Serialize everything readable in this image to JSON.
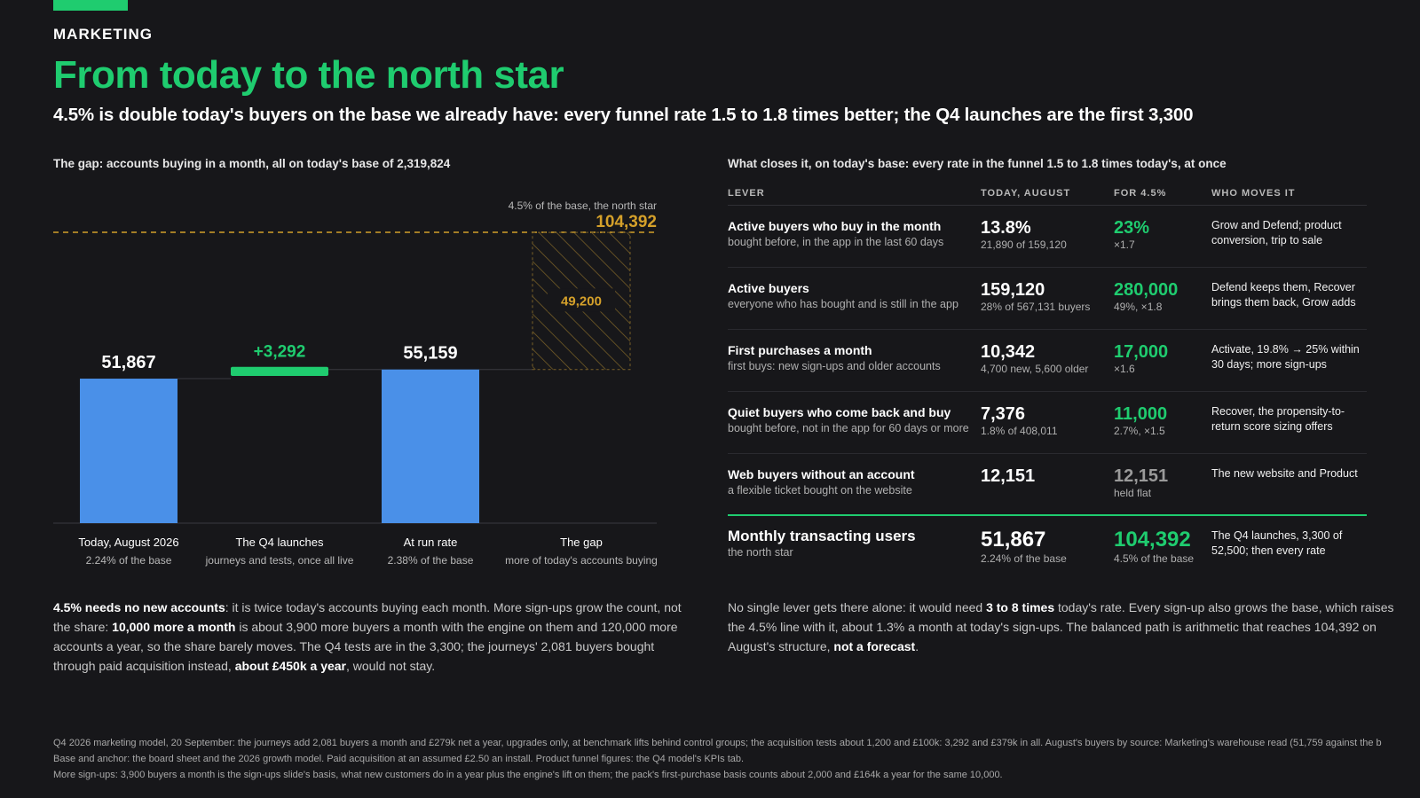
{
  "header": {
    "kicker": "MARKETING",
    "title": "From today to the north star",
    "subtitle": "4.5% is double today's buyers on the base we already have: every funnel rate 1.5 to 1.8 times better; the Q4 launches are the first 3,300"
  },
  "left": {
    "heading": "The gap: accounts buying in a month, all on today's base of 2,319,824",
    "para": {
      "b1": "4.5% needs no new accounts",
      "t1": ": it is twice today's accounts buying each month. More sign-ups grow the count, not the share: ",
      "b2": "10,000 more a month",
      "t2": " is about 3,900 more buyers a month with the engine on them and 120,000 more accounts a year, so the share barely moves. The Q4 tests are in the 3,300; the journeys' 2,081 buyers bought through paid acquisition instead, ",
      "b3": "about £450k a year",
      "t3": ", would not stay."
    }
  },
  "chart_data": {
    "type": "bar",
    "subtype": "waterfall",
    "title": "The gap: accounts buying in a month, all on today's base of 2,319,824",
    "target": {
      "label": "4.5% of the base, the north star",
      "value": 104392,
      "value_label": "104,392"
    },
    "categories": [
      "Today, August 2026",
      "The Q4 launches",
      "At run rate",
      "The gap"
    ],
    "sublabels": [
      "2.24% of the base",
      "journeys and tests, once all live",
      "2.38% of the base",
      "more of today's accounts buying"
    ],
    "values": [
      51867,
      3292,
      55159,
      49200
    ],
    "value_labels": [
      "51,867",
      "+3,292",
      "55,159",
      "49,200"
    ],
    "kinds": [
      "total",
      "increment",
      "total",
      "gap"
    ],
    "ylim": [
      0,
      104392
    ],
    "colors": {
      "total": "#4a90e8",
      "increment": "#1fcc6f",
      "gap": "#d4a02a"
    }
  },
  "right": {
    "heading": "What closes it, on today's base: every rate in the funnel 1.5 to 1.8 times today's, at once",
    "columns": [
      "LEVER",
      "TODAY, AUGUST",
      "FOR 4.5%",
      "WHO MOVES IT"
    ],
    "rows": [
      {
        "name": "Active buyers who buy in the month",
        "desc": "bought before, in the app in the last 60 days",
        "today": "13.8%",
        "today_sub": "21,890 of 159,120",
        "target": "23%",
        "target_sub": "×1.7",
        "who": "Grow and Defend; product conversion, trip to sale"
      },
      {
        "name": "Active buyers",
        "desc": "everyone who has bought and is still in the app",
        "today": "159,120",
        "today_sub": "28% of 567,131 buyers",
        "target": "280,000",
        "target_sub": "49%, ×1.8",
        "who": "Defend keeps them, Recover brings them back, Grow adds"
      },
      {
        "name": "First purchases a month",
        "desc": "first buys: new sign-ups and older accounts",
        "today": "10,342",
        "today_sub": "4,700 new, 5,600 older",
        "target": "17,000",
        "target_sub": "×1.6",
        "who": "Activate, 19.8% → 25% within 30 days; more sign-ups"
      },
      {
        "name": "Quiet buyers who come back and buy",
        "desc": "bought before, not in the app for 60 days or more",
        "today": "7,376",
        "today_sub": "1.8% of 408,011",
        "target": "11,000",
        "target_sub": "2.7%, ×1.5",
        "who": "Recover, the propensity-to-return score sizing offers"
      },
      {
        "name": "Web buyers without an account",
        "desc": "a flexible ticket bought on the website",
        "today": "12,151",
        "today_sub": "",
        "target": "12,151",
        "target_sub": "held flat",
        "who": "The new website and Product"
      }
    ],
    "total": {
      "name": "Monthly transacting users",
      "desc": "the north star",
      "today": "51,867",
      "today_sub": "2.24% of the base",
      "target": "104,392",
      "target_sub": "4.5% of the base",
      "who": "The Q4 launches, 3,300 of 52,500; then every rate"
    },
    "para": {
      "t1": "No single lever gets there alone: it would need ",
      "b1": "3 to 8 times",
      "t2": " today's rate. Every sign-up also grows the base, which raises the 4.5% line with it, about 1.3% a month at today's sign-ups. The balanced path is arithmetic that reaches 104,392 on August's structure, ",
      "b2": "not a forecast",
      "t3": "."
    }
  },
  "footnotes": [
    "Q4 2026 marketing model, 20 September: the journeys add 2,081 buyers a month and £279k net a year, upgrades only, at benchmark lifts behind control groups; the acquisition tests about 1,200 and £100k: 3,292 and £379k in all. August's buyers by source: Marketing's warehouse read (51,759 against the b",
    "Base and anchor: the board sheet and the 2026 growth model. Paid acquisition at an assumed £2.50 an install. Product funnel figures: the Q4 model's KPIs tab.",
    "More sign-ups: 3,900 buyers a month is the sign-ups slide's basis, what new customers do in a year plus the engine's lift on them; the pack's first-purchase basis counts about 2,000 and £164k a year for the same 10,000."
  ]
}
